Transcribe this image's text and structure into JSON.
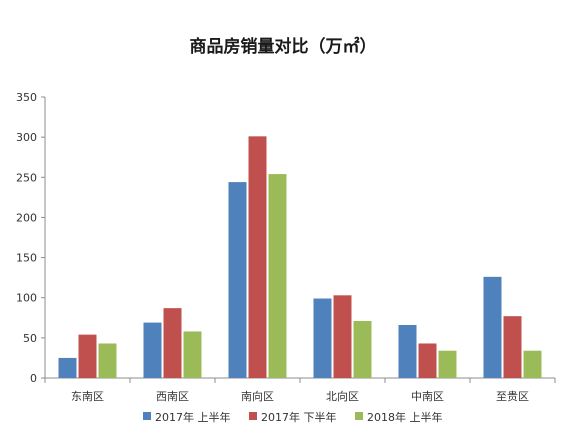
{
  "chart_data": {
    "type": "bar",
    "title": "商品房销量对比（万㎡）",
    "xlabel": "",
    "ylabel": "",
    "ylim": [
      0,
      350
    ],
    "yticks": [
      0,
      50,
      100,
      150,
      200,
      250,
      300,
      350
    ],
    "grid": false,
    "legend": "bottom",
    "categories": [
      "东南区",
      "西南区",
      "南向区",
      "北向区",
      "中南区",
      "至贵区"
    ],
    "series": [
      {
        "name": "2017年 上半年",
        "color": "#4f81bd",
        "values": [
          25,
          69,
          244,
          99,
          66,
          126
        ]
      },
      {
        "name": "2017年 下半年",
        "color": "#c0504d",
        "values": [
          54,
          87,
          301,
          103,
          43,
          77
        ]
      },
      {
        "name": "2018年 上半年",
        "color": "#9bbb59",
        "values": [
          43,
          58,
          254,
          71,
          34,
          34
        ]
      }
    ]
  }
}
